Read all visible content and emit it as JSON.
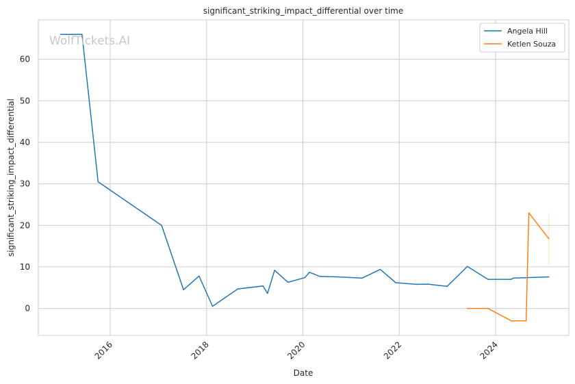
{
  "chart_data": {
    "type": "line",
    "title": "significant_striking_impact_differential over time",
    "xlabel": "Date",
    "ylabel": "significant_striking_impact_differential",
    "watermark": "WolfTickets.AI",
    "xlim": [
      "2014-07-05",
      "2025-07-10"
    ],
    "ylim": [
      -6.5,
      69.5
    ],
    "x_ticks": [
      "2016",
      "2018",
      "2020",
      "2022",
      "2024"
    ],
    "y_ticks": [
      0,
      10,
      20,
      30,
      40,
      50,
      60
    ],
    "grid": true,
    "legend_position": "top-right",
    "series": [
      {
        "name": "Angela Hill",
        "color": "#1f77b4",
        "points": [
          [
            "2014-12-20",
            66.0
          ],
          [
            "2015-06-01",
            66.0
          ],
          [
            "2015-10-01",
            30.5
          ],
          [
            "2017-01-25",
            20.0
          ],
          [
            "2017-07-10",
            4.5
          ],
          [
            "2017-11-05",
            7.8
          ],
          [
            "2018-02-15",
            0.5
          ],
          [
            "2018-08-25",
            4.7
          ],
          [
            "2019-03-05",
            5.4
          ],
          [
            "2019-04-08",
            3.6
          ],
          [
            "2019-06-01",
            9.2
          ],
          [
            "2019-09-10",
            6.3
          ],
          [
            "2020-01-15",
            7.4
          ],
          [
            "2020-02-20",
            8.7
          ],
          [
            "2020-05-10",
            7.7
          ],
          [
            "2020-09-20",
            7.6
          ],
          [
            "2021-03-25",
            7.3
          ],
          [
            "2021-08-10",
            9.4
          ],
          [
            "2021-12-05",
            6.2
          ],
          [
            "2022-05-10",
            5.8
          ],
          [
            "2022-08-10",
            5.85
          ],
          [
            "2022-12-30",
            5.3
          ],
          [
            "2023-06-01",
            10.1
          ],
          [
            "2023-11-05",
            7.0
          ],
          [
            "2024-04-28",
            7.0
          ],
          [
            "2024-05-15",
            7.3
          ],
          [
            "2025-02-08",
            7.6
          ]
        ]
      },
      {
        "name": "Ketlen Souza",
        "color": "#ff7f0e",
        "points": [
          [
            "2023-06-01",
            0.0
          ],
          [
            "2023-11-05",
            0.0
          ],
          [
            "2024-05-01",
            -3.0
          ],
          [
            "2024-08-20",
            -3.0
          ],
          [
            "2024-09-10",
            23.0
          ],
          [
            "2025-02-08",
            16.8
          ]
        ]
      }
    ]
  }
}
